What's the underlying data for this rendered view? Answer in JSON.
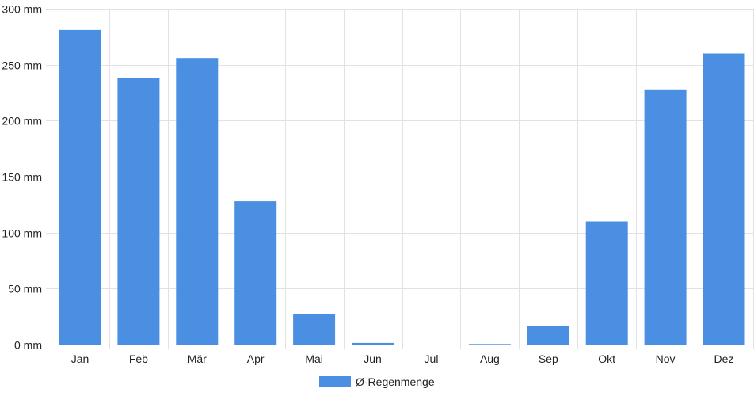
{
  "chart_data": {
    "type": "bar",
    "categories": [
      "Jan",
      "Feb",
      "Mär",
      "Apr",
      "Mai",
      "Jun",
      "Jul",
      "Aug",
      "Sep",
      "Okt",
      "Nov",
      "Dez"
    ],
    "series": [
      {
        "name": "Ø-Regenmenge",
        "values": [
          281,
          238,
          256,
          128,
          27,
          1.5,
          0,
          0.5,
          17,
          110,
          228,
          260
        ]
      }
    ],
    "y_ticks": [
      "0 mm",
      "50 mm",
      "100 mm",
      "150 mm",
      "200 mm",
      "250 mm",
      "300 mm"
    ],
    "ylim": [
      0,
      300
    ],
    "grid": true,
    "legend_position": "bottom-center",
    "colors": {
      "bar": "#4a8fe2",
      "grid": "#e2e2e2",
      "axis": "#cccccc"
    }
  }
}
